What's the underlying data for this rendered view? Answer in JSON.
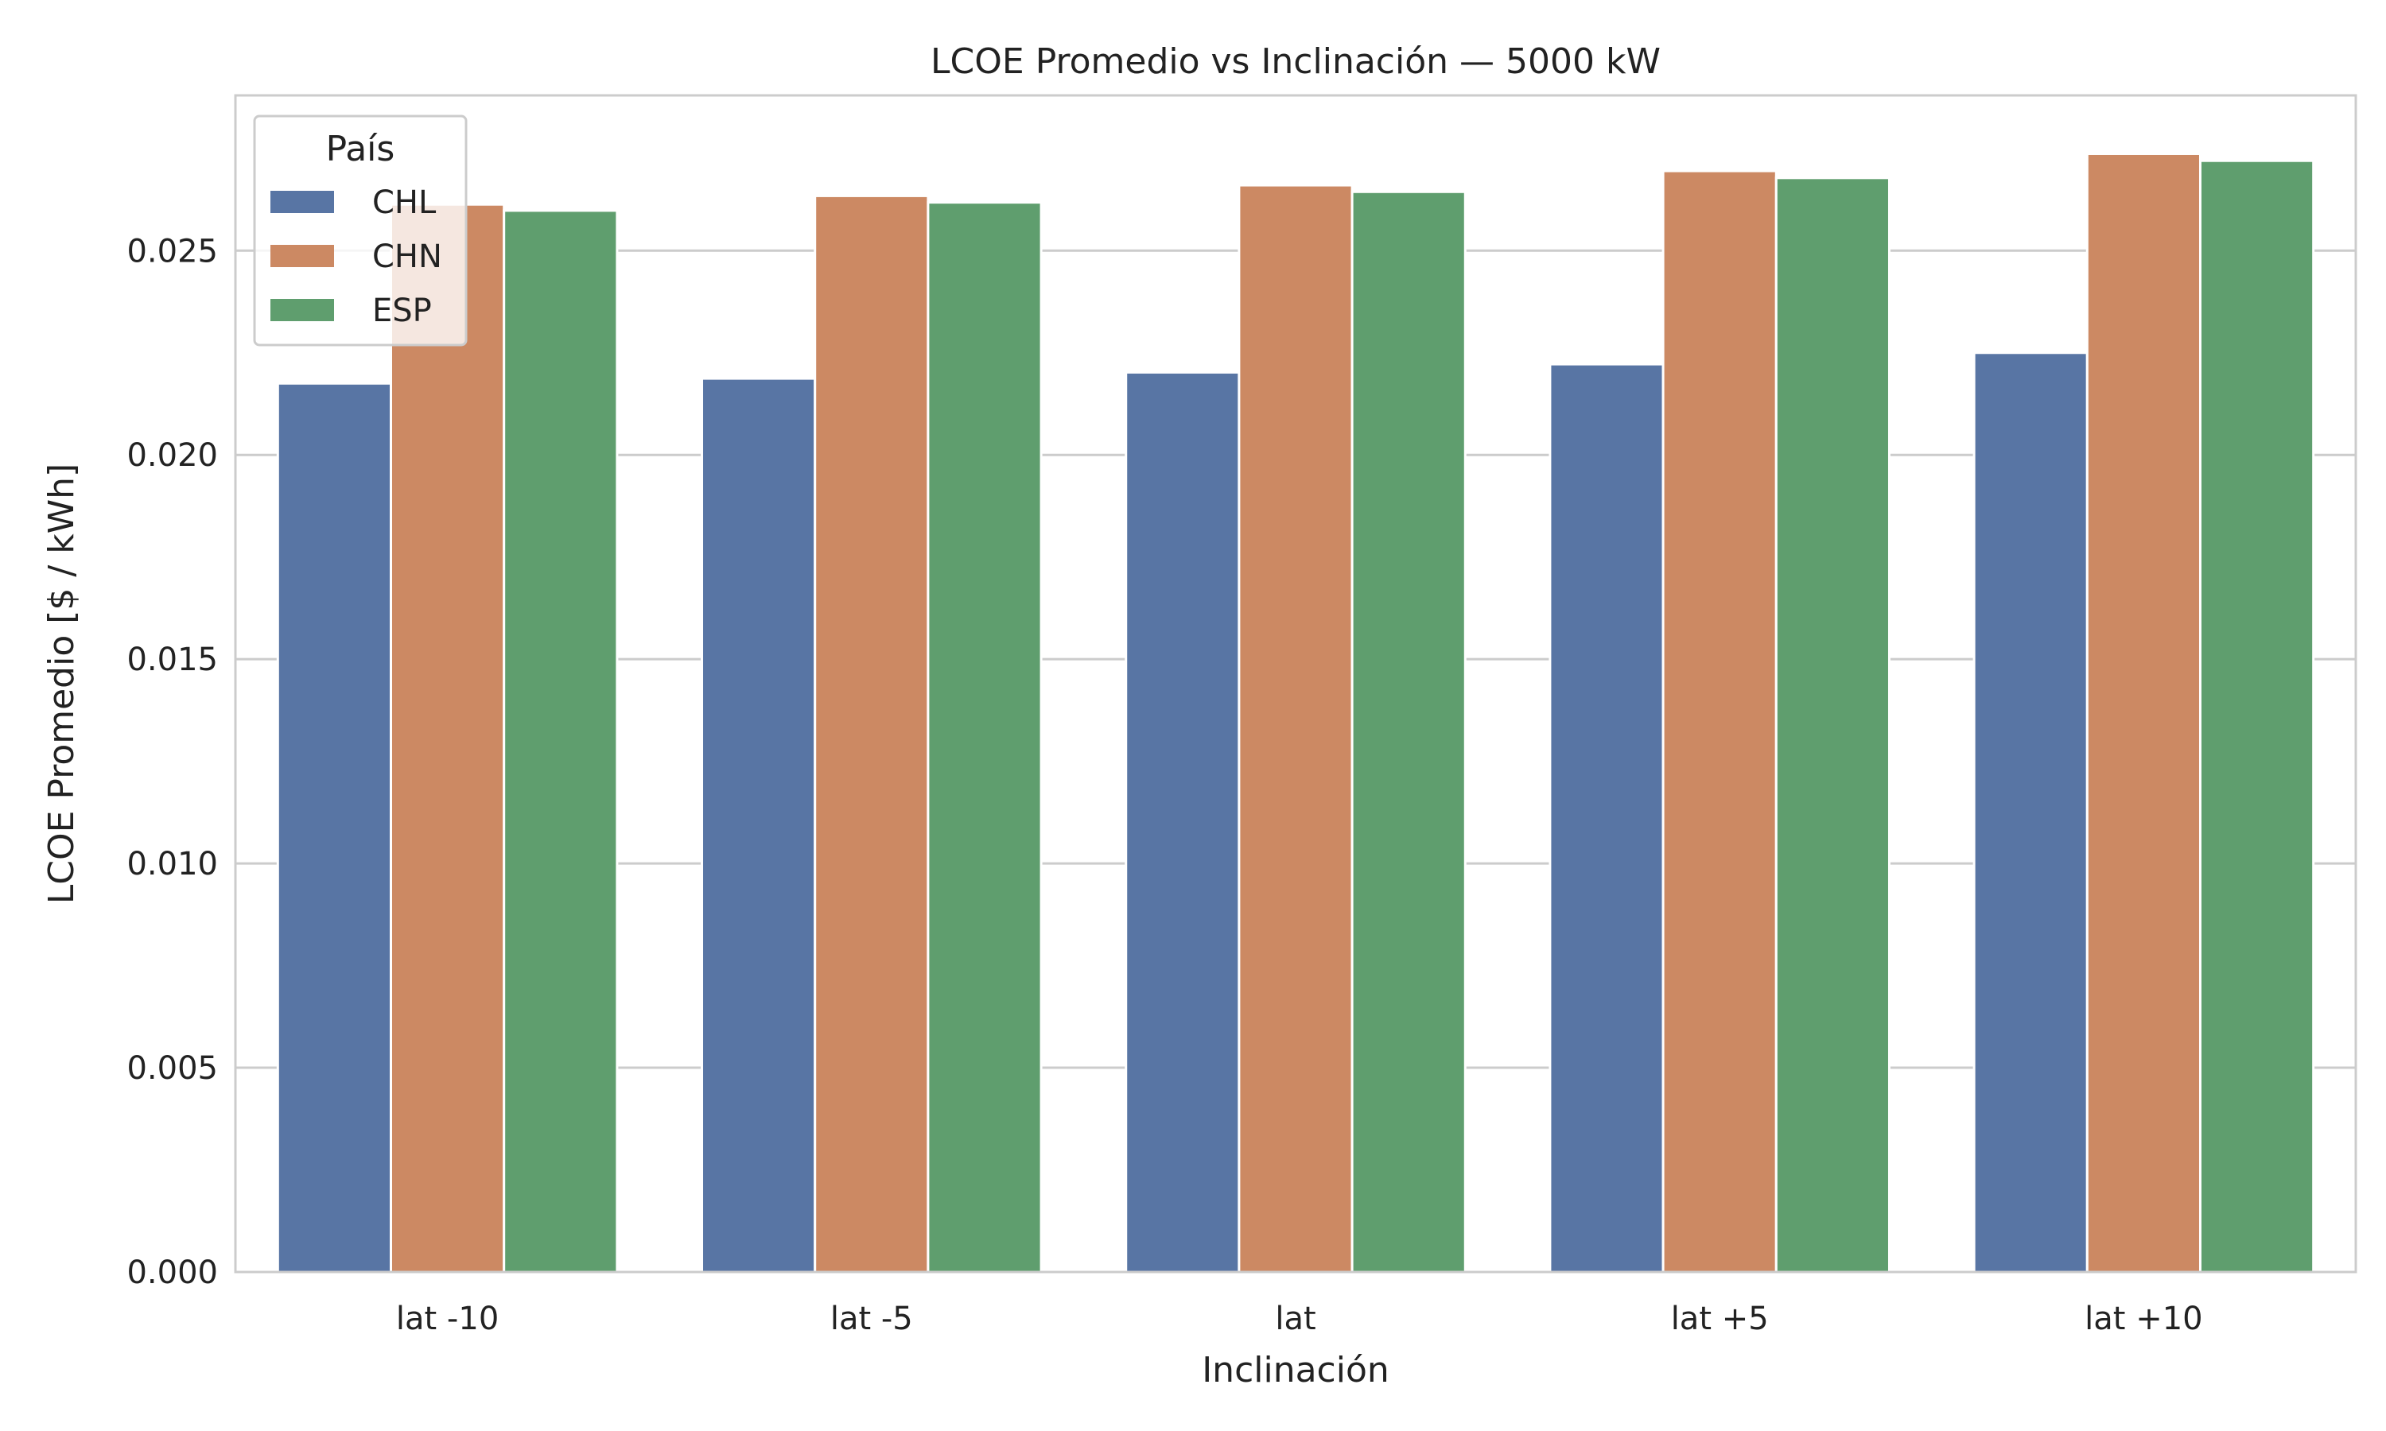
{
  "chart_data": {
    "type": "bar",
    "title": "LCOE Promedio vs Inclinación — 5000 kW",
    "xlabel": "Inclinación",
    "ylabel": "LCOE Promedio [$ / kWh]",
    "categories": [
      "lat -10",
      "lat -5",
      "lat",
      "lat +5",
      "lat +10"
    ],
    "series": [
      {
        "name": "CHL",
        "color": "#5875a4",
        "values": [
          0.02175,
          0.02187,
          0.02202,
          0.02222,
          0.0225
        ]
      },
      {
        "name": "CHN",
        "color": "#cc8963",
        "values": [
          0.02613,
          0.02634,
          0.0266,
          0.02695,
          0.02737
        ]
      },
      {
        "name": "ESP",
        "color": "#5f9e6e",
        "values": [
          0.02598,
          0.02618,
          0.02644,
          0.02678,
          0.0272
        ]
      }
    ],
    "ylim": [
      0,
      0.0288
    ],
    "yticks": [
      "0.000",
      "0.005",
      "0.010",
      "0.015",
      "0.020",
      "0.025"
    ],
    "ytick_values": [
      0,
      0.005,
      0.01,
      0.015,
      0.02,
      0.025
    ],
    "grid": true,
    "legend": {
      "title": "País",
      "placement": "top-left"
    }
  }
}
